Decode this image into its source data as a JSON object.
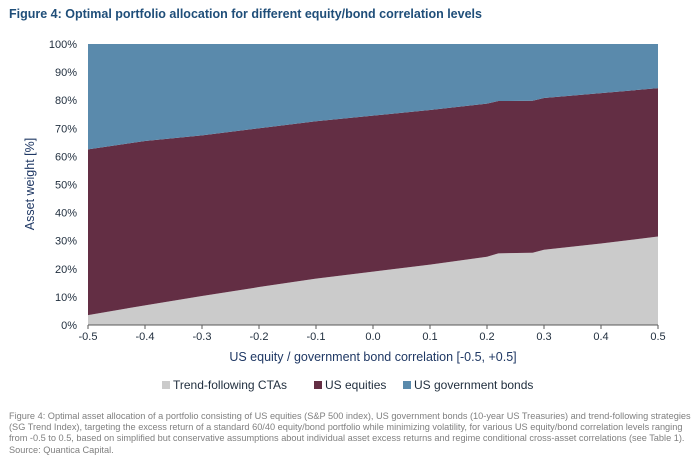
{
  "figure_title": "Figure 4: Optimal portfolio allocation for different equity/bond correlation levels",
  "caption": "Figure 4: Optimal asset allocation of a portfolio consisting of US equities (S&P 500 index), US government bonds (10-year US Treasuries) and trend-following strategies (SG Trend Index), targeting the excess return of a standard 60/40 equity/bond portfolio while minimizing volatility, for various US equity/bond correlation levels ranging from -0.5 to 0.5, based on simplified but conservative assumptions about individual asset excess returns and regime conditional cross-asset correlations (see Table 1). Source: Quantica Capital.",
  "chart_data": {
    "type": "area",
    "stacked": true,
    "xlabel": "US equity / government bond correlation [-0.5, +0.5]",
    "ylabel": "Asset weight [%]",
    "xlim": [
      -0.5,
      0.5
    ],
    "ylim": [
      0,
      100
    ],
    "x_ticks": [
      "-0.5",
      "-0.4",
      "-0.3",
      "-0.2",
      "-0.1",
      "0.0",
      "0.1",
      "0.2",
      "0.3",
      "0.4",
      "0.5"
    ],
    "y_ticks": [
      "0%",
      "10%",
      "20%",
      "30%",
      "40%",
      "50%",
      "60%",
      "70%",
      "80%",
      "90%",
      "100%"
    ],
    "legend_position": "bottom",
    "x": [
      -0.5,
      -0.4,
      -0.3,
      -0.2,
      -0.1,
      0.0,
      0.1,
      0.2,
      0.22,
      0.28,
      0.3,
      0.4,
      0.5
    ],
    "series": [
      {
        "name": "Trend-following CTAs",
        "color": "#cbcbcb",
        "values": [
          3.5,
          7,
          10.3,
          13.5,
          16.5,
          19,
          21.5,
          24.3,
          25.5,
          25.7,
          26.8,
          29,
          31.5
        ]
      },
      {
        "name": "US equities",
        "color": "#632e44",
        "values": [
          59,
          58.5,
          57.2,
          56.5,
          56,
          55.5,
          55,
          54.5,
          54.2,
          54.1,
          54,
          53.5,
          52.8
        ]
      },
      {
        "name": "US government bonds",
        "color": "#5a8aac",
        "values": [
          37.5,
          34.5,
          32.5,
          30,
          27.5,
          25.5,
          23.5,
          21.2,
          20.3,
          20.2,
          19.2,
          17.5,
          15.7
        ]
      }
    ]
  }
}
